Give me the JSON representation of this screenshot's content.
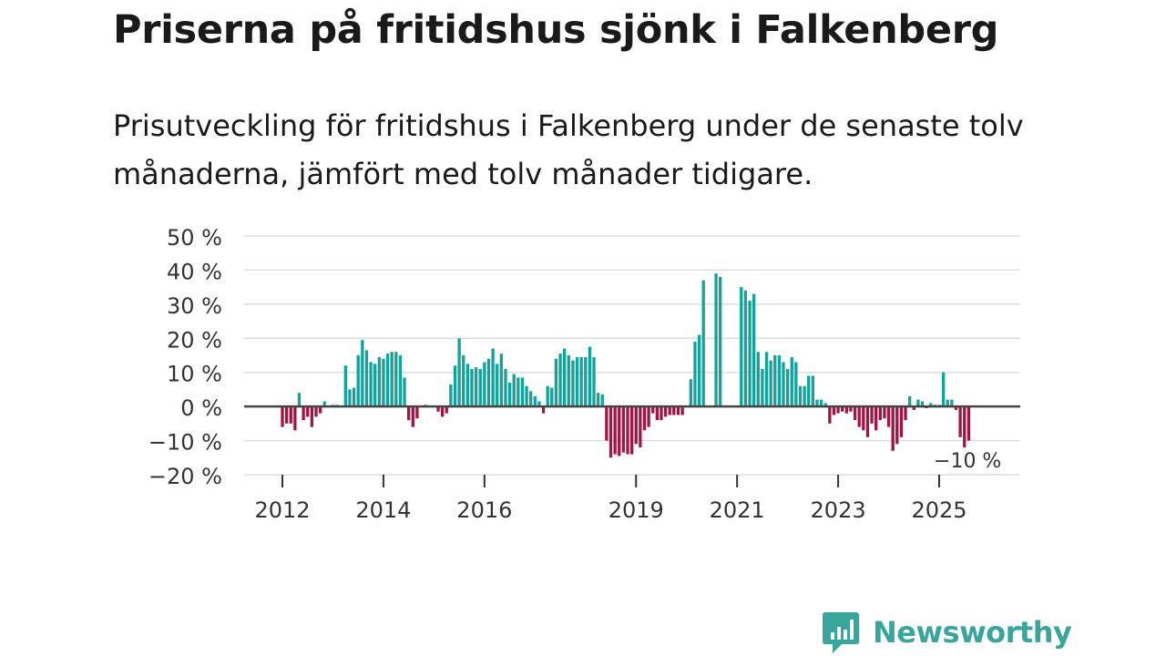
{
  "title": "Priserna på fritidshus sjönk i Falkenberg",
  "subtitle": "Prisutveckling för fritidshus i Falkenberg under de senaste tolv månaderna, jämfört med tolv månader tidigare.",
  "brand": {
    "name": "Newsworthy",
    "color": "#3aa59b"
  },
  "colors": {
    "positive": "#13a39a",
    "negative": "#a01543",
    "zero_line": "#444444",
    "grid": "#dddddd"
  },
  "chart_data": {
    "type": "bar",
    "title": "Priserna på fritidshus sjönk i Falkenberg",
    "subtitle": "Prisutveckling för fritidshus i Falkenberg under de senaste tolv månaderna, jämfört med tolv månader tidigare.",
    "xlabel": "",
    "ylabel": "",
    "unit": "%",
    "ylim": [
      -20,
      50
    ],
    "yticks": [
      {
        "value": 50,
        "label": "50 %"
      },
      {
        "value": 40,
        "label": "40 %"
      },
      {
        "value": 30,
        "label": "30 %"
      },
      {
        "value": 20,
        "label": "20 %"
      },
      {
        "value": 10,
        "label": "10 %"
      },
      {
        "value": 0,
        "label": "0 %"
      },
      {
        "value": -10,
        "label": "−10 %"
      },
      {
        "value": -20,
        "label": "−20 %"
      }
    ],
    "xticks": [
      "2012",
      "2014",
      "2016",
      "2019",
      "2021",
      "2023",
      "2025"
    ],
    "xtick_positions": [
      "2012-01",
      "2014-01",
      "2016-01",
      "2019-01",
      "2021-01",
      "2023-01",
      "2025-01"
    ],
    "grid": true,
    "legend": "none",
    "start_month": "2011-01",
    "frequency": "monthly",
    "values": [
      null,
      null,
      null,
      null,
      null,
      null,
      null,
      null,
      null,
      null,
      null,
      null,
      -6,
      -5,
      -5,
      -7,
      4,
      -4,
      -3,
      -6,
      -3,
      -2,
      1.5,
      0,
      0.5,
      0.5,
      0,
      12,
      5,
      5.5,
      15,
      19.5,
      16.5,
      13,
      12.5,
      14.5,
      14,
      15.5,
      16,
      16,
      15,
      8.5,
      -4,
      -6,
      -3.5,
      0,
      0.5,
      0,
      0,
      -1.5,
      -3,
      -2,
      6.5,
      12,
      20,
      15,
      12.5,
      11,
      11.5,
      11,
      13,
      14,
      17,
      12.5,
      15.5,
      11,
      7,
      9.5,
      8.5,
      8.5,
      6,
      4.5,
      3,
      1.5,
      -2,
      6,
      5.5,
      14,
      15.5,
      17,
      15,
      13.5,
      14.5,
      14.5,
      14.5,
      17.5,
      14.5,
      4,
      3.5,
      -10,
      -15,
      -14,
      -14.5,
      -13.5,
      -14,
      -14,
      -11,
      -12,
      -7,
      -6,
      -2,
      -4,
      -4,
      -3,
      -2.5,
      -2.5,
      -2.5,
      -2.5,
      null,
      8,
      19,
      21,
      37,
      null,
      null,
      39,
      38,
      null,
      null,
      null,
      null,
      35,
      34,
      31,
      33,
      16,
      11,
      16,
      13.5,
      15,
      15,
      13,
      11,
      14.5,
      13,
      6,
      6,
      9,
      9,
      2,
      2,
      1,
      -5,
      -2.5,
      -2,
      -1.5,
      -2,
      -1.5,
      -4,
      -6,
      -7,
      -9,
      -5,
      -7,
      -4,
      -3.5,
      -6,
      -13,
      -11,
      -9,
      -4,
      3,
      -1,
      2,
      1.5,
      -0.5,
      1,
      0.5,
      0.5,
      10,
      2,
      2,
      -1,
      -9,
      -12,
      -10
    ],
    "annotations": [
      {
        "at": "2025-08",
        "label": "−10 %"
      }
    ]
  }
}
